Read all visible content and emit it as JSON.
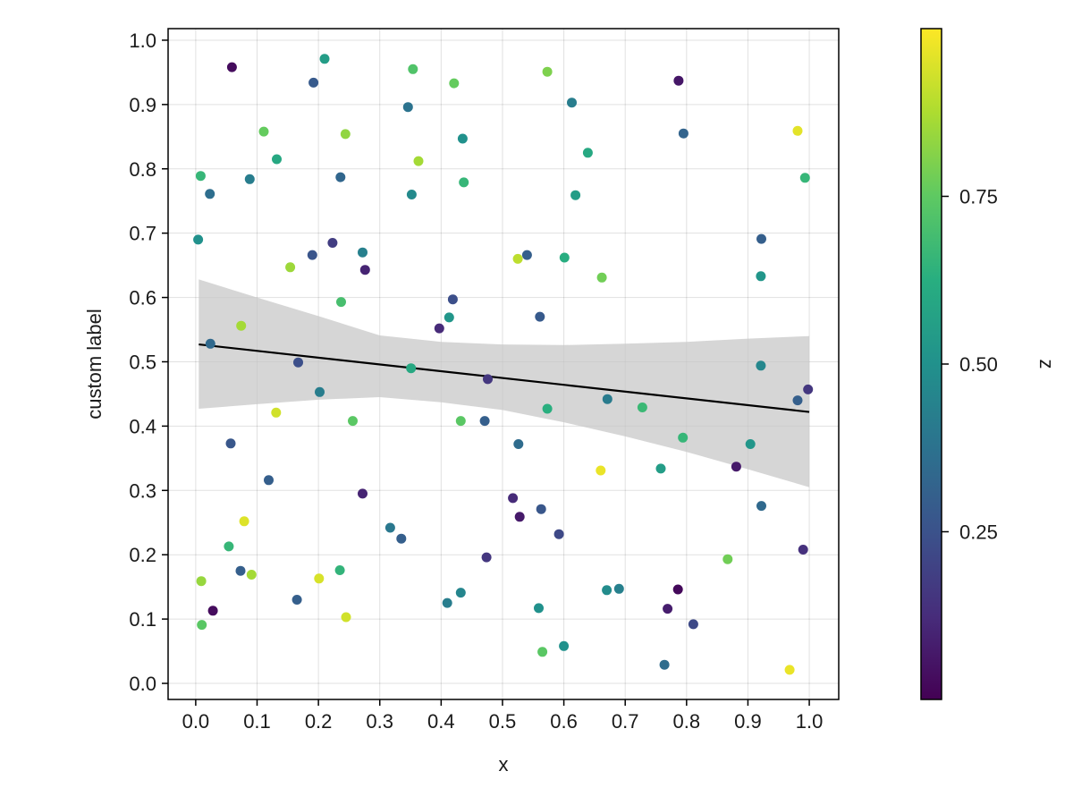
{
  "chart_data": {
    "type": "scatter",
    "title": "",
    "xlabel": "x",
    "ylabel": "custom label",
    "xlim": [
      -0.045,
      1.048
    ],
    "ylim": [
      -0.025,
      1.018
    ],
    "xticks": [
      "0.0",
      "0.1",
      "0.2",
      "0.3",
      "0.4",
      "0.5",
      "0.6",
      "0.7",
      "0.8",
      "0.9",
      "1.0"
    ],
    "yticks": [
      "0.0",
      "0.1",
      "0.2",
      "0.3",
      "0.4",
      "0.5",
      "0.6",
      "0.7",
      "0.8",
      "0.9",
      "1.0"
    ],
    "grid": true,
    "colormap": "viridis",
    "colorbar": {
      "label": "z",
      "range": [
        0.0,
        1.0
      ],
      "ticks": [
        "0.25",
        "0.50",
        "0.75"
      ],
      "tick_values": [
        0.25,
        0.5,
        0.75
      ]
    },
    "regression": {
      "line": [
        [
          0.005,
          0.527
        ],
        [
          1.0,
          0.422
        ]
      ],
      "band": [
        [
          0.005,
          0.427,
          0.628
        ],
        [
          0.1,
          0.434,
          0.6
        ],
        [
          0.2,
          0.441,
          0.571
        ],
        [
          0.3,
          0.445,
          0.541
        ],
        [
          0.4,
          0.437,
          0.531
        ],
        [
          0.5,
          0.425,
          0.527
        ],
        [
          0.6,
          0.406,
          0.526
        ],
        [
          0.7,
          0.384,
          0.528
        ],
        [
          0.8,
          0.36,
          0.531
        ],
        [
          0.9,
          0.333,
          0.536
        ],
        [
          1.0,
          0.305,
          0.54
        ]
      ],
      "line_color": "#000000",
      "band_color": "#c8c8c8"
    },
    "points": [
      [
        0.059,
        0.958,
        0.03
      ],
      [
        0.21,
        0.971,
        0.55
      ],
      [
        0.354,
        0.955,
        0.72
      ],
      [
        0.573,
        0.951,
        0.8
      ],
      [
        0.421,
        0.933,
        0.76
      ],
      [
        0.192,
        0.934,
        0.28
      ],
      [
        0.787,
        0.937,
        0.06
      ],
      [
        0.346,
        0.896,
        0.38
      ],
      [
        0.613,
        0.903,
        0.42
      ],
      [
        0.111,
        0.858,
        0.76
      ],
      [
        0.244,
        0.854,
        0.83
      ],
      [
        0.435,
        0.847,
        0.5
      ],
      [
        0.795,
        0.855,
        0.32
      ],
      [
        0.981,
        0.859,
        0.96
      ],
      [
        0.363,
        0.812,
        0.86
      ],
      [
        0.132,
        0.815,
        0.6
      ],
      [
        0.639,
        0.825,
        0.6
      ],
      [
        0.008,
        0.789,
        0.66
      ],
      [
        0.088,
        0.784,
        0.42
      ],
      [
        0.236,
        0.787,
        0.33
      ],
      [
        0.437,
        0.779,
        0.66
      ],
      [
        0.023,
        0.761,
        0.36
      ],
      [
        0.352,
        0.76,
        0.47
      ],
      [
        0.619,
        0.759,
        0.55
      ],
      [
        0.993,
        0.786,
        0.66
      ],
      [
        0.004,
        0.69,
        0.5
      ],
      [
        0.223,
        0.685,
        0.18
      ],
      [
        0.272,
        0.67,
        0.43
      ],
      [
        0.19,
        0.666,
        0.26
      ],
      [
        0.54,
        0.666,
        0.3
      ],
      [
        0.525,
        0.66,
        0.9
      ],
      [
        0.601,
        0.662,
        0.62
      ],
      [
        0.922,
        0.691,
        0.3
      ],
      [
        0.154,
        0.647,
        0.85
      ],
      [
        0.276,
        0.643,
        0.1
      ],
      [
        0.662,
        0.631,
        0.78
      ],
      [
        0.921,
        0.633,
        0.52
      ],
      [
        0.419,
        0.597,
        0.24
      ],
      [
        0.237,
        0.593,
        0.7
      ],
      [
        0.413,
        0.569,
        0.52
      ],
      [
        0.561,
        0.57,
        0.28
      ],
      [
        0.074,
        0.556,
        0.86
      ],
      [
        0.397,
        0.552,
        0.12
      ],
      [
        0.024,
        0.528,
        0.34
      ],
      [
        0.167,
        0.499,
        0.24
      ],
      [
        0.351,
        0.49,
        0.6
      ],
      [
        0.921,
        0.494,
        0.46
      ],
      [
        0.476,
        0.473,
        0.16
      ],
      [
        0.202,
        0.453,
        0.42
      ],
      [
        0.671,
        0.442,
        0.41
      ],
      [
        0.981,
        0.44,
        0.3
      ],
      [
        0.998,
        0.457,
        0.16
      ],
      [
        0.573,
        0.427,
        0.63
      ],
      [
        0.728,
        0.429,
        0.67
      ],
      [
        0.131,
        0.421,
        0.93
      ],
      [
        0.256,
        0.408,
        0.74
      ],
      [
        0.432,
        0.408,
        0.74
      ],
      [
        0.471,
        0.408,
        0.3
      ],
      [
        0.057,
        0.373,
        0.27
      ],
      [
        0.526,
        0.372,
        0.35
      ],
      [
        0.794,
        0.382,
        0.66
      ],
      [
        0.904,
        0.372,
        0.52
      ],
      [
        0.758,
        0.334,
        0.55
      ],
      [
        0.66,
        0.331,
        0.97
      ],
      [
        0.881,
        0.337,
        0.07
      ],
      [
        0.119,
        0.316,
        0.3
      ],
      [
        0.272,
        0.295,
        0.1
      ],
      [
        0.517,
        0.288,
        0.12
      ],
      [
        0.563,
        0.271,
        0.27
      ],
      [
        0.528,
        0.259,
        0.07
      ],
      [
        0.922,
        0.276,
        0.34
      ],
      [
        0.079,
        0.252,
        0.95
      ],
      [
        0.317,
        0.242,
        0.4
      ],
      [
        0.335,
        0.225,
        0.3
      ],
      [
        0.592,
        0.232,
        0.22
      ],
      [
        0.054,
        0.213,
        0.66
      ],
      [
        0.474,
        0.196,
        0.16
      ],
      [
        0.99,
        0.208,
        0.14
      ],
      [
        0.073,
        0.175,
        0.3
      ],
      [
        0.235,
        0.176,
        0.65
      ],
      [
        0.867,
        0.193,
        0.78
      ],
      [
        0.009,
        0.159,
        0.84
      ],
      [
        0.091,
        0.169,
        0.86
      ],
      [
        0.201,
        0.163,
        0.94
      ],
      [
        0.028,
        0.113,
        0.03
      ],
      [
        0.165,
        0.13,
        0.3
      ],
      [
        0.41,
        0.125,
        0.42
      ],
      [
        0.432,
        0.141,
        0.45
      ],
      [
        0.559,
        0.117,
        0.5
      ],
      [
        0.67,
        0.145,
        0.48
      ],
      [
        0.69,
        0.147,
        0.43
      ],
      [
        0.786,
        0.146,
        0.02
      ],
      [
        0.769,
        0.116,
        0.08
      ],
      [
        0.01,
        0.091,
        0.74
      ],
      [
        0.245,
        0.103,
        0.93
      ],
      [
        0.811,
        0.092,
        0.22
      ],
      [
        0.565,
        0.049,
        0.74
      ],
      [
        0.6,
        0.058,
        0.5
      ],
      [
        0.764,
        0.029,
        0.35
      ],
      [
        0.968,
        0.021,
        0.97
      ]
    ]
  }
}
